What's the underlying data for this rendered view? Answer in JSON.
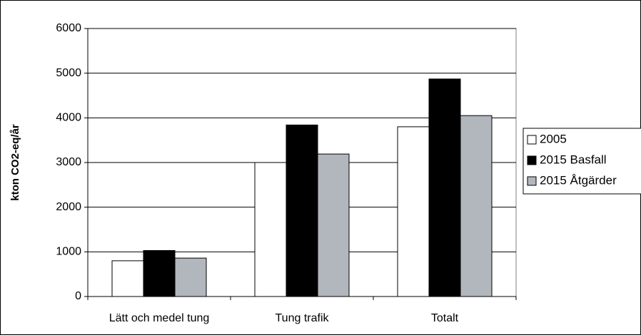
{
  "chart_data": {
    "type": "bar",
    "y_label": "kton CO2-eq/år",
    "categories": [
      "Lätt och medel tung",
      "Tung trafik",
      "Totalt"
    ],
    "series": [
      {
        "name": "2005",
        "color": "#ffffff",
        "values": [
          800,
          3000,
          3800
        ]
      },
      {
        "name": "2015 Basfall",
        "color": "#000000",
        "values": [
          1030,
          3840,
          4870
        ]
      },
      {
        "name": "2015 Åtgärder",
        "color": "#b2b6bd",
        "values": [
          860,
          3190,
          4050
        ]
      }
    ],
    "ylim": [
      0,
      6000
    ],
    "yticks": [
      0,
      1000,
      2000,
      3000,
      4000,
      5000,
      6000
    ],
    "grid": true,
    "legend": "right"
  }
}
